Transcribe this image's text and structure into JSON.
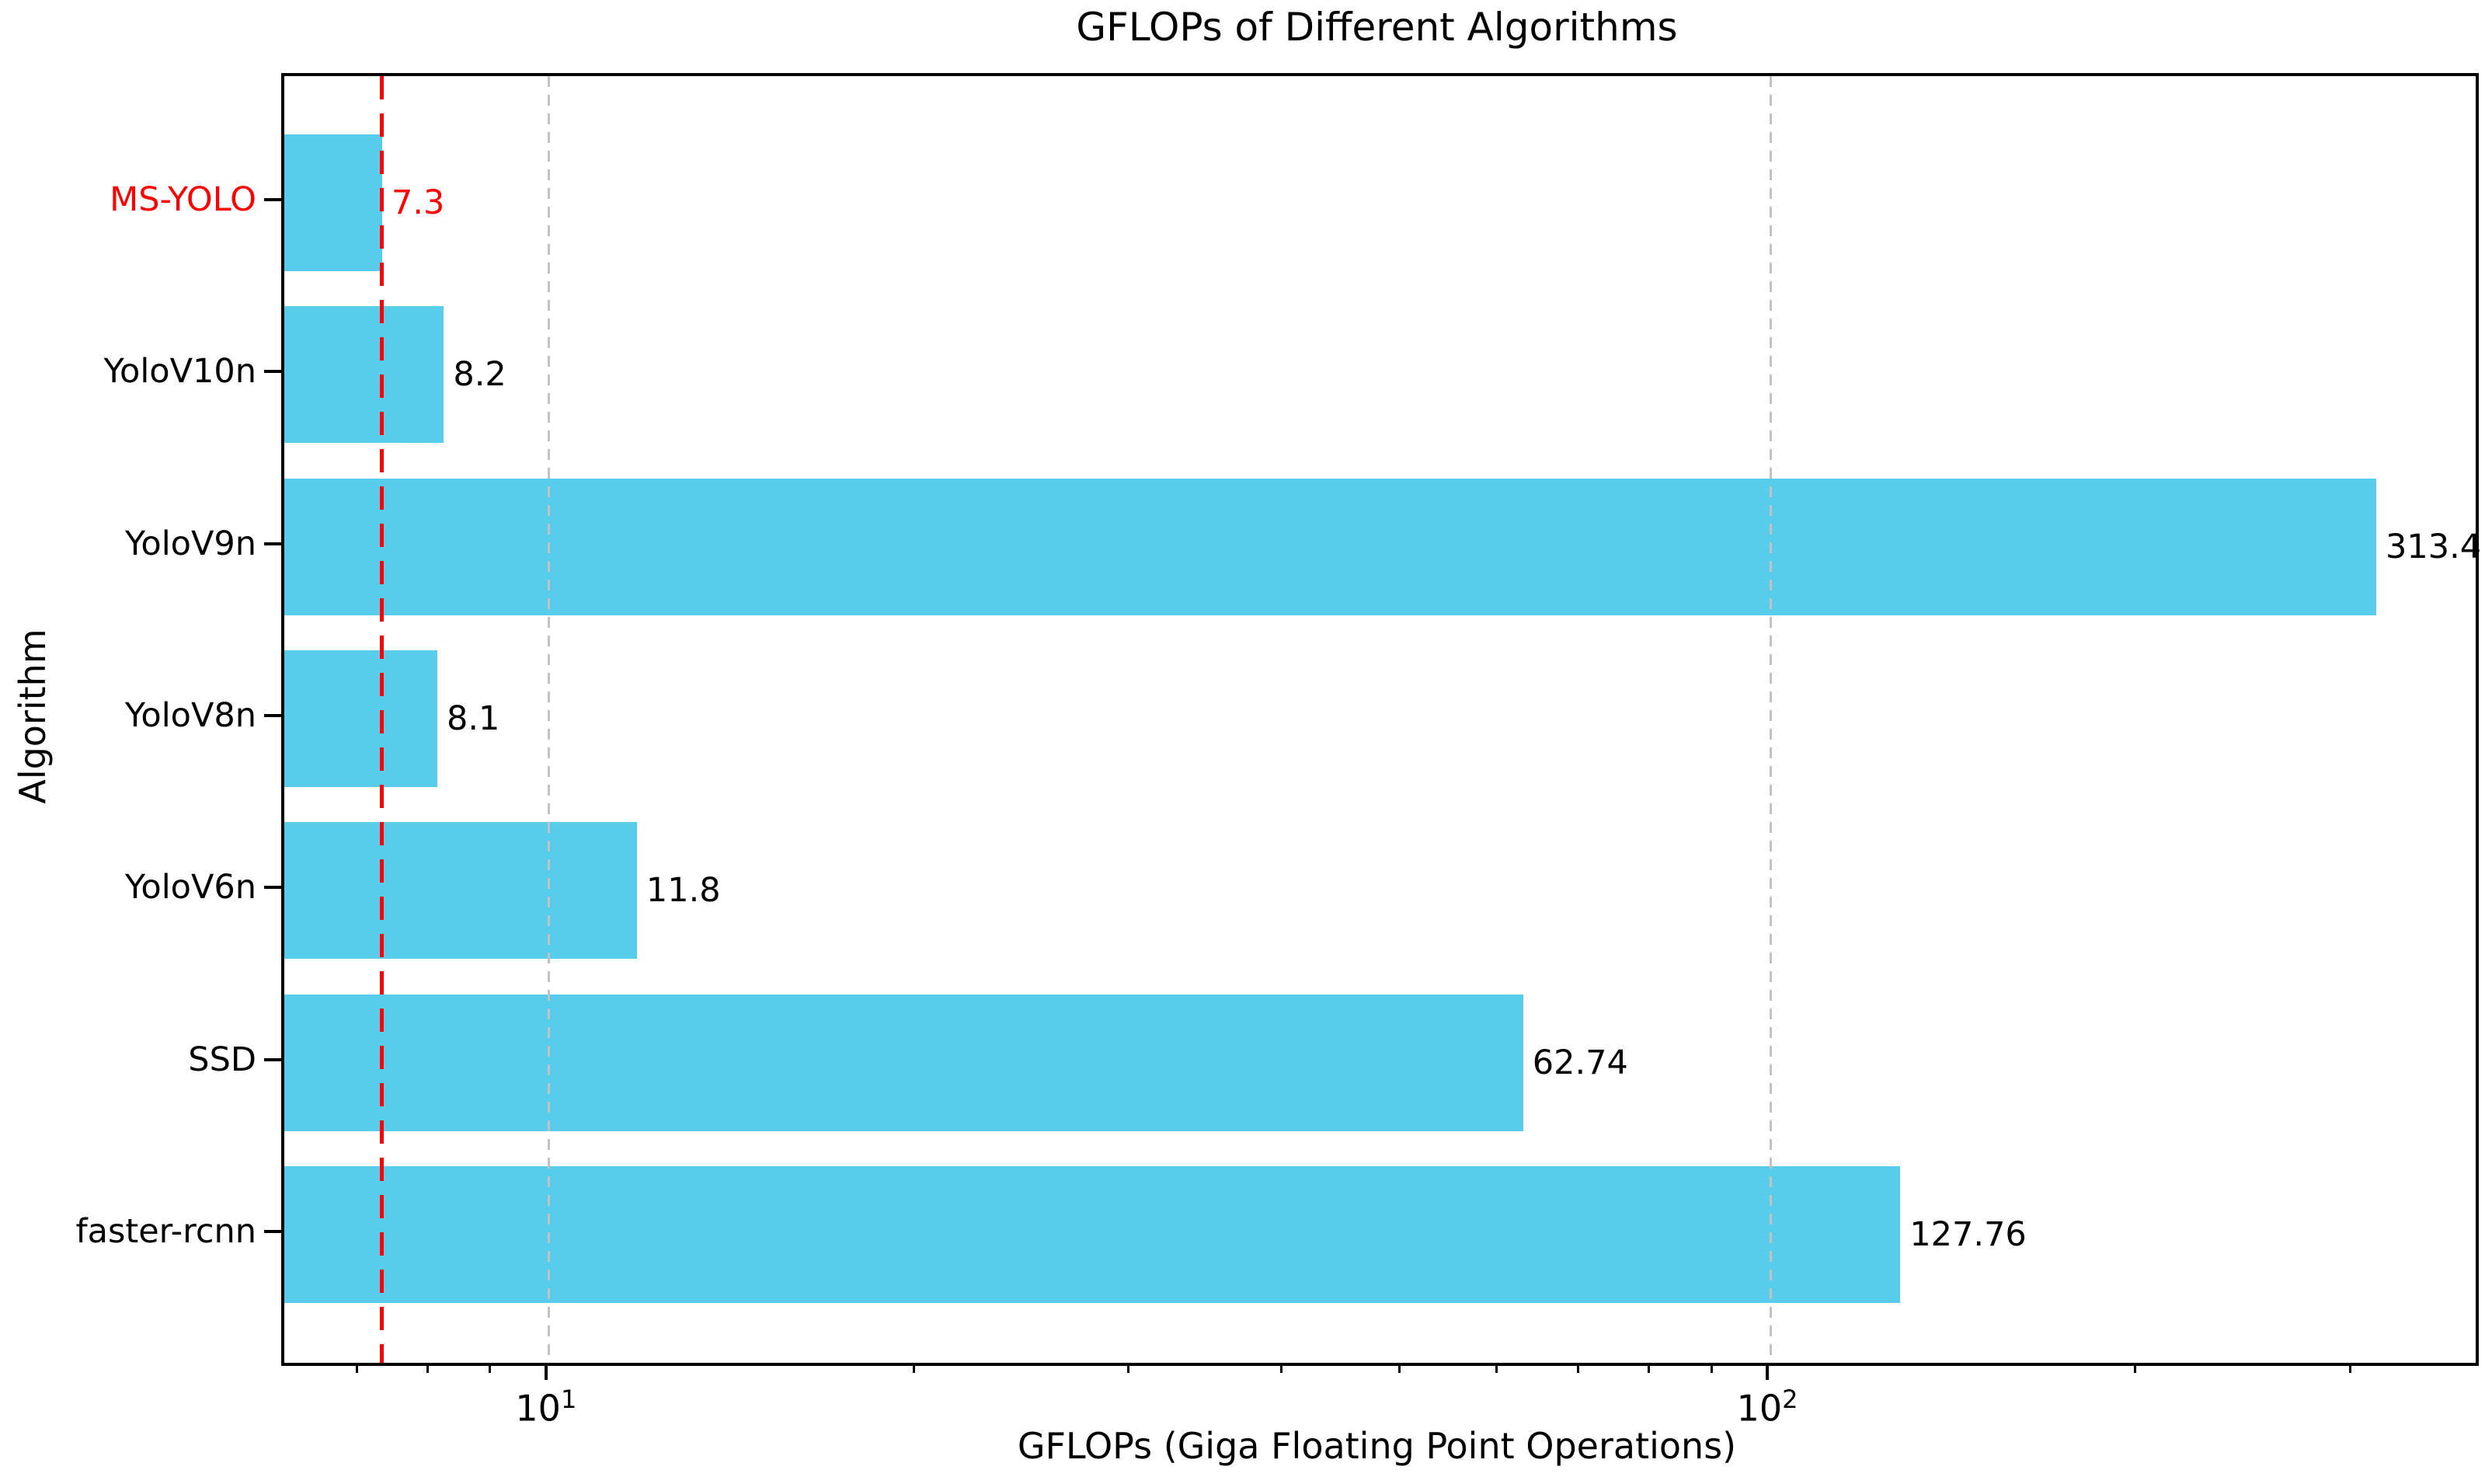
{
  "chart_data": {
    "type": "bar",
    "orientation": "horizontal",
    "title": "GFLOPs of Different Algorithms",
    "xlabel": "GFLOPs (Giga Floating Point Operations)",
    "ylabel": "Algorithm",
    "xscale": "log",
    "xlim": [
      6.07,
      378
    ],
    "grid": "vertical dashed gridlines at major x ticks",
    "legend": "none",
    "categories": [
      "MS-YOLO",
      "YoloV10n",
      "YoloV9n",
      "YoloV8n",
      "YoloV6n",
      "SSD",
      "faster-rcnn"
    ],
    "values": [
      7.3,
      8.2,
      313.4,
      8.1,
      11.8,
      62.74,
      127.76
    ],
    "value_labels": [
      "7.3",
      "8.2",
      "313.4",
      "8.1",
      "11.8",
      "62.74",
      "127.76"
    ],
    "highlight_index": 0,
    "reference_line": {
      "value": 7.3,
      "style": "dashed",
      "color": "#ff0000"
    },
    "x_major_ticks": [
      {
        "value": 10,
        "base": "10",
        "exponent": "1"
      },
      {
        "value": 100,
        "base": "10",
        "exponent": "2"
      }
    ],
    "x_minor_ticks": [
      7,
      8,
      9,
      20,
      30,
      40,
      50,
      60,
      70,
      80,
      90,
      200,
      300
    ],
    "colors": {
      "bar": "#57cceb",
      "highlight": "#ff0000",
      "grid": "#c2c2c2",
      "text": "#000000"
    }
  }
}
